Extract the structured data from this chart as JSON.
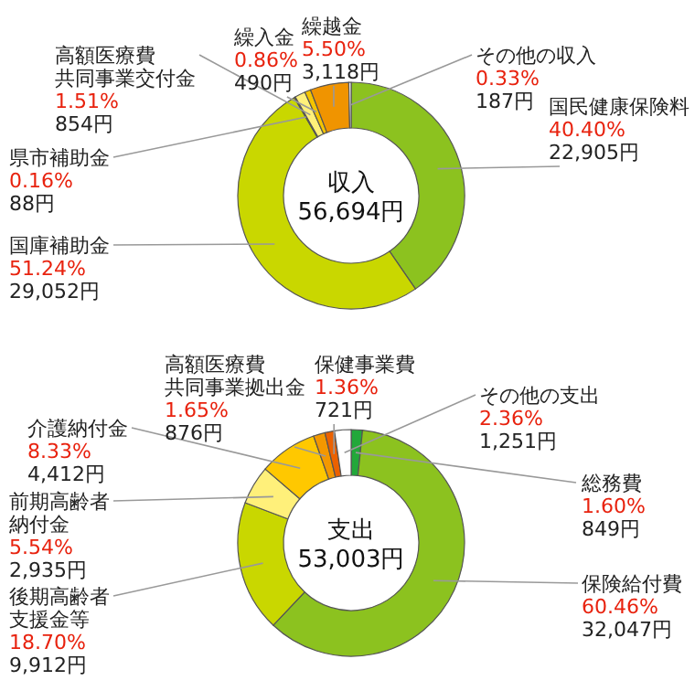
{
  "chart_data": [
    {
      "type": "donut",
      "title": "収入",
      "annotations": [
        "56,694円"
      ],
      "categories": [
        "国民健康保険料",
        "国庫補助金",
        "県市補助金",
        "高額医療費共同事業交付金",
        "繰入金",
        "繰越金",
        "その他の収入"
      ],
      "values": [
        22905,
        29052,
        88,
        854,
        490,
        3118,
        187
      ],
      "colors": [
        "#8cc21f",
        "#c9d700",
        "#5a5a10",
        "#fff07a",
        "#f5c400",
        "#f09400",
        "#ffffff"
      ],
      "value_labels": [
        "40.40%\n22,905円",
        "51.24%\n29,052円",
        "0.16%\n88円",
        "1.51%\n854円",
        "0.86%\n490円",
        "5.50%\n3,118円",
        "0.33%\n187円"
      ]
    },
    {
      "type": "donut",
      "title": "支出",
      "annotations": [
        "53,003円"
      ],
      "categories": [
        "総務費",
        "保険給付費",
        "後期高齢者支援金等",
        "前期高齢者納付金",
        "介護納付金",
        "高額医療費共同事業拠出金",
        "保健事業費",
        "その他の支出"
      ],
      "values": [
        849,
        32047,
        9912,
        2935,
        4412,
        876,
        721,
        1251
      ],
      "colors": [
        "#22a83a",
        "#8cc21f",
        "#c9d700",
        "#fff07a",
        "#ffc800",
        "#f39800",
        "#eb6100",
        "#ffffff"
      ],
      "value_labels": [
        "1.60%\n849円",
        "60.46%\n32,047円",
        "18.70%\n9,912円",
        "5.54%\n2,935円",
        "8.33%\n4,412円",
        "1.65%\n876円",
        "1.36%\n721円",
        "2.36%\n1,251円"
      ]
    }
  ]
}
